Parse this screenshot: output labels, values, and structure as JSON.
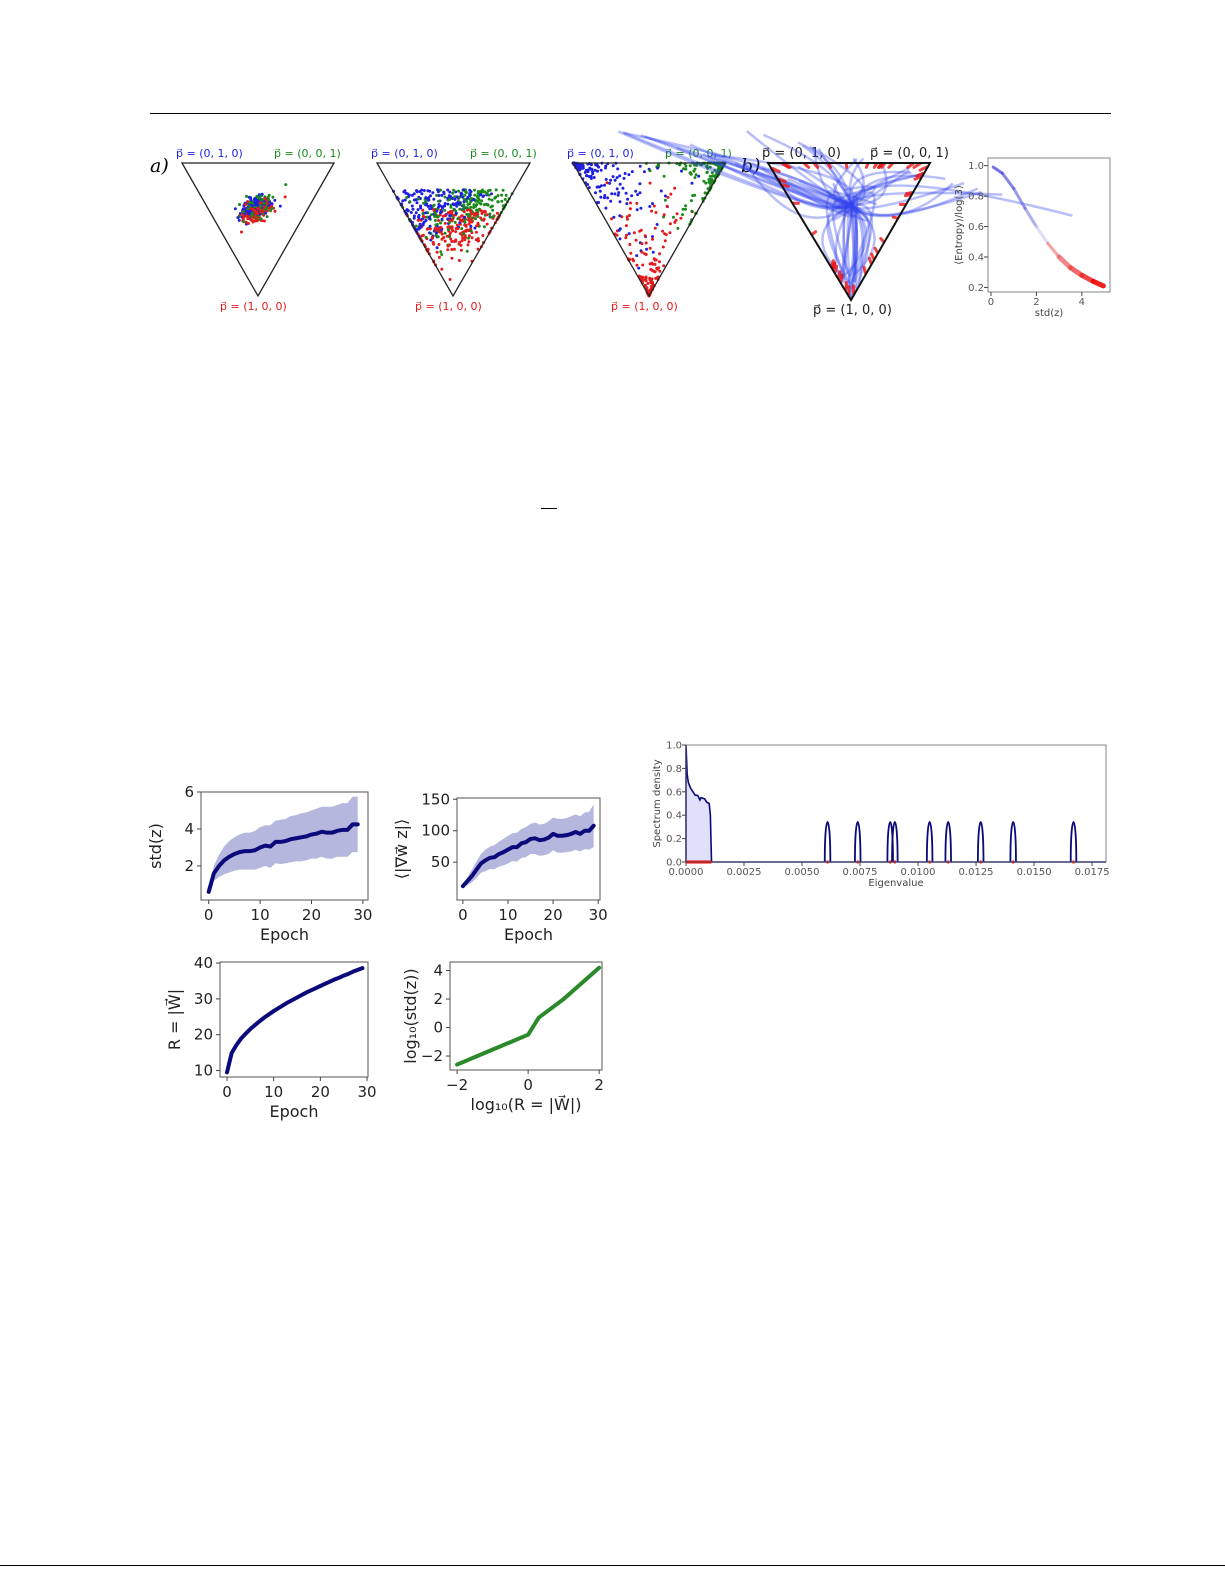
{
  "figure_top": {
    "panel_a_label": "a)",
    "panel_b_label": "b)",
    "simplex_labels": {
      "top_left": "p⃗ = (0, 1, 0)",
      "top_right": "p⃗ = (0, 0, 1)",
      "bottom": "p⃗ = (1, 0, 0)"
    },
    "colors": {
      "class_1": "#e41a1c",
      "class_2": "#1f1fe0",
      "class_3": "#1a8a1a"
    }
  },
  "chart_data": [
    {
      "id": "entropy",
      "type": "line",
      "xlabel": "std(z)",
      "ylabel": "⟨Entropy⟩/log(3)",
      "xlim": [
        -0.13,
        5.24
      ],
      "ylim": [
        0.17,
        1.05
      ],
      "xticks": [
        0,
        2,
        4
      ],
      "xtick_labels": [
        "0",
        "2",
        "4"
      ],
      "yticks": [
        0.2,
        0.4,
        0.6,
        0.8,
        1.0
      ],
      "ytick_labels": [
        "0.2",
        "0.4",
        "0.6",
        "0.8",
        "1.0"
      ],
      "x": [
        0.1,
        0.5,
        1.0,
        1.5,
        2.0,
        2.5,
        3.0,
        3.5,
        4.0,
        4.5,
        4.95
      ],
      "y": [
        0.99,
        0.95,
        0.85,
        0.72,
        0.6,
        0.49,
        0.4,
        0.33,
        0.28,
        0.24,
        0.21
      ],
      "color_start": "#5555dd",
      "color_end": "#ee1111"
    },
    {
      "id": "spectrum",
      "type": "line",
      "xlabel": "Eigenvalue",
      "ylabel": "Spectrum density",
      "xlim": [
        0,
        0.0181
      ],
      "ylim": [
        0,
        1.0
      ],
      "xticks": [
        0,
        0.0025,
        0.005,
        0.0075,
        0.01,
        0.0125,
        0.015,
        0.0175
      ],
      "xtick_labels": [
        "0.0000",
        "0.0025",
        "0.0050",
        "0.0075",
        "0.0100",
        "0.0125",
        "0.0150",
        "0.0175"
      ],
      "yticks": [
        0,
        0.2,
        0.4,
        0.6,
        0.8,
        1.0
      ],
      "ytick_labels": [
        "0.0",
        "0.2",
        "0.4",
        "0.6",
        "0.8",
        "1.0"
      ],
      "bulk_x": [
        0,
        5e-05,
        0.0001,
        0.0002,
        0.0003,
        0.0004,
        0.0005,
        0.0006,
        0.00065,
        0.0008,
        0.0009,
        0.001,
        0.00105,
        0.0011
      ],
      "bulk_y": [
        1.0,
        0.75,
        0.68,
        0.63,
        0.6,
        0.57,
        0.57,
        0.53,
        0.55,
        0.54,
        0.51,
        0.5,
        0.4,
        0.0
      ],
      "outliers": [
        0.0061,
        0.0074,
        0.0088,
        0.009,
        0.0105,
        0.0113,
        0.0127,
        0.0141,
        0.0167
      ],
      "outlier_height": 0.35,
      "line_color": "#0a0a7a",
      "fill_color": "#dfe0fa",
      "marker_color": "#ee0000"
    },
    {
      "id": "std-vs-epoch",
      "type": "line",
      "xlabel": "Epoch",
      "ylabel": "std(z)",
      "xlim": [
        -1.5,
        31
      ],
      "ylim": [
        0.16,
        6
      ],
      "xticks": [
        0,
        10,
        20,
        30
      ],
      "xtick_labels": [
        "0",
        "10",
        "20",
        "30"
      ],
      "yticks": [
        2,
        4,
        6
      ],
      "ytick_labels": [
        "2",
        "4",
        "6"
      ],
      "mean": [
        0.6,
        1.6,
        2.0,
        2.3,
        2.5,
        2.65,
        2.75,
        2.8,
        2.8,
        2.85,
        3.0,
        3.1,
        3.05,
        3.3,
        3.3,
        3.35,
        3.45,
        3.5,
        3.55,
        3.6,
        3.7,
        3.75,
        3.85,
        3.8,
        3.8,
        3.9,
        3.95,
        3.95,
        4.25,
        4.25
      ],
      "std": [
        0.1,
        0.4,
        0.6,
        0.75,
        0.85,
        0.9,
        0.95,
        1.0,
        1.0,
        1.05,
        1.1,
        1.1,
        1.15,
        1.15,
        1.2,
        1.2,
        1.25,
        1.25,
        1.3,
        1.3,
        1.3,
        1.35,
        1.35,
        1.4,
        1.4,
        1.4,
        1.45,
        1.45,
        1.5,
        1.5
      ],
      "line_color": "#0a0a7a",
      "band_color": "#a9aad8"
    },
    {
      "id": "grad-vs-epoch",
      "type": "line",
      "xlabel": "Epoch",
      "ylabel": "⟨|∇w⃗ z|⟩",
      "xlim": [
        -1.3,
        30.4
      ],
      "ylim": [
        -10,
        152
      ],
      "xticks": [
        0,
        10,
        20,
        30
      ],
      "xtick_labels": [
        "0",
        "10",
        "20",
        "30"
      ],
      "yticks": [
        50,
        100,
        150
      ],
      "ytick_labels": [
        "50",
        "100",
        "150"
      ],
      "mean": [
        12,
        20,
        28,
        38,
        48,
        53,
        57,
        58,
        63,
        66,
        70,
        74,
        74,
        80,
        82,
        87,
        88,
        85,
        86,
        89,
        95,
        92,
        92,
        93,
        95,
        98,
        95,
        100,
        100,
        108
      ],
      "std": [
        3,
        6,
        10,
        13,
        15,
        17,
        18,
        19,
        20,
        21,
        22,
        22,
        23,
        23,
        24,
        24,
        25,
        25,
        25,
        26,
        26,
        27,
        27,
        27,
        28,
        28,
        28,
        29,
        30,
        34
      ],
      "line_color": "#0a0a7a",
      "band_color": "#a9aad8"
    },
    {
      "id": "R-vs-epoch",
      "type": "line",
      "xlabel": "Epoch",
      "ylabel": "R = |W⃗|",
      "xlim": [
        -1.5,
        30.2
      ],
      "ylim": [
        8.2,
        40.3
      ],
      "xticks": [
        0,
        10,
        20,
        30
      ],
      "xtick_labels": [
        "0",
        "10",
        "20",
        "30"
      ],
      "yticks": [
        10,
        20,
        30,
        40
      ],
      "ytick_labels": [
        "10",
        "20",
        "30",
        "40"
      ],
      "mean": [
        9.5,
        14.9,
        17.1,
        18.9,
        20.3,
        21.6,
        22.7,
        23.8,
        24.8,
        25.7,
        26.6,
        27.4,
        28.2,
        29.0,
        29.7,
        30.4,
        31.1,
        31.8,
        32.4,
        33.0,
        33.6,
        34.2,
        34.8,
        35.4,
        35.9,
        36.5,
        37.0,
        37.6,
        38.1,
        38.6
      ],
      "line_color": "#0a0a7a"
    },
    {
      "id": "loglog",
      "type": "line",
      "xlabel": "log₁₀(R = |W⃗|)",
      "ylabel": "log₁₀(std(z))",
      "xlim": [
        -2.2,
        2.08
      ],
      "ylim": [
        -2.98,
        4.6
      ],
      "xticks": [
        -2,
        0,
        2
      ],
      "xtick_labels": [
        "−2",
        "0",
        "2"
      ],
      "yticks": [
        -2,
        0,
        2,
        4
      ],
      "ytick_labels": [
        "−2",
        "0",
        "2",
        "4"
      ],
      "x": [
        -2,
        -1,
        0,
        0.3,
        1,
        2
      ],
      "y": [
        -2.6,
        -1.55,
        -0.5,
        0.7,
        2.0,
        4.2
      ],
      "line_color": "#2a8a2a"
    }
  ]
}
